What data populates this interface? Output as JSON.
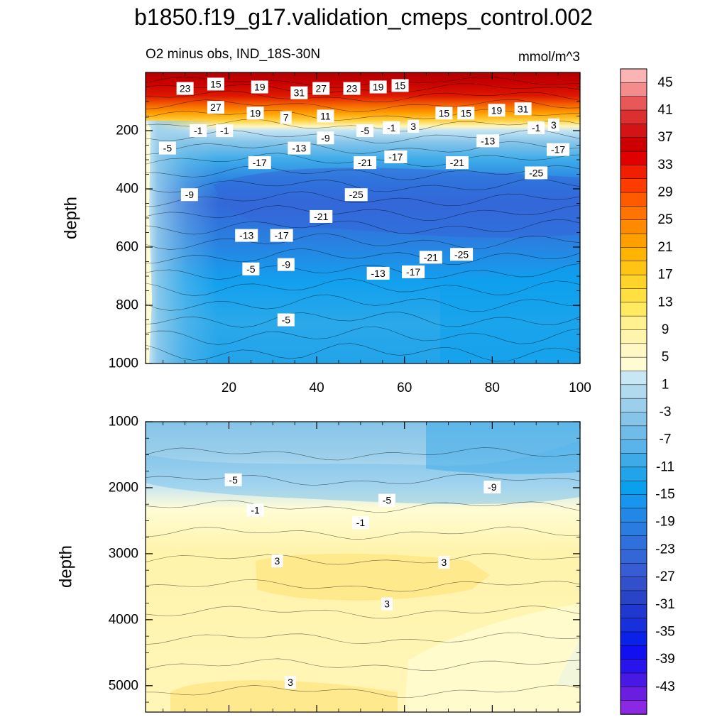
{
  "chart_data": {
    "type": "heatmap",
    "title": "b1850.f19_g17.validation_cmeps_control.002",
    "subtitle_left": "O2 minus obs, IND_18S-30N",
    "subtitle_right": "mmol/m^3",
    "x_ticks": [
      "20",
      "40",
      "60",
      "80",
      "100"
    ],
    "xlim": [
      1,
      100
    ],
    "colorbar": {
      "labels": [
        "45",
        "41",
        "37",
        "33",
        "29",
        "25",
        "21",
        "17",
        "13",
        "9",
        "5",
        "1",
        "-3",
        "-7",
        "-11",
        "-15",
        "-19",
        "-23",
        "-27",
        "-31",
        "-35",
        "-39",
        "-43"
      ],
      "colors": [
        "#fbb4b4",
        "#f48c8c",
        "#e85858",
        "#dc3030",
        "#d41414",
        "#cc0000",
        "#e00000",
        "#f21e00",
        "#ff3c00",
        "#ff5a00",
        "#ff7300",
        "#ff8a00",
        "#ffa000",
        "#ffb400",
        "#ffc414",
        "#ffd42a",
        "#ffe040",
        "#ffea60",
        "#fff090",
        "#fff4ac",
        "#fff8c4",
        "#fffcd4",
        "#c8e6f4",
        "#b2daee",
        "#9ccfeb",
        "#86c5e9",
        "#70bce9",
        "#5ab3e9",
        "#3eabe9",
        "#22a4ea",
        "#0aa0ee",
        "#1895ec",
        "#2288e6",
        "#2a7ce0",
        "#3070dc",
        "#3466d8",
        "#385cd4",
        "#3250cc",
        "#2a44c8",
        "#2038d0",
        "#1830dc",
        "#0a22e8",
        "#1010f0",
        "#2a14ec",
        "#4818e4",
        "#6a1ee0",
        "#8a28e4"
      ]
    },
    "panels": [
      {
        "ylabel": "depth",
        "y_ticks": [
          "200",
          "400",
          "600",
          "800",
          "1000"
        ],
        "ylim": [
          0,
          1000
        ],
        "contour_labels": [
          {
            "text": "23",
            "x": 10,
            "y": 55
          },
          {
            "text": "15",
            "x": 17,
            "y": 40
          },
          {
            "text": "19",
            "x": 27,
            "y": 50
          },
          {
            "text": "31",
            "x": 36,
            "y": 70
          },
          {
            "text": "27",
            "x": 41,
            "y": 55
          },
          {
            "text": "23",
            "x": 48,
            "y": 55
          },
          {
            "text": "19",
            "x": 54,
            "y": 50
          },
          {
            "text": "15",
            "x": 59,
            "y": 45
          },
          {
            "text": "27",
            "x": 17,
            "y": 120
          },
          {
            "text": "19",
            "x": 26,
            "y": 140
          },
          {
            "text": "7",
            "x": 33,
            "y": 155
          },
          {
            "text": "11",
            "x": 42,
            "y": 150
          },
          {
            "text": "15",
            "x": 69,
            "y": 140
          },
          {
            "text": "15",
            "x": 74,
            "y": 140
          },
          {
            "text": "19",
            "x": 81,
            "y": 130
          },
          {
            "text": "31",
            "x": 87,
            "y": 125
          },
          {
            "text": "-1",
            "x": 13,
            "y": 200
          },
          {
            "text": "-1",
            "x": 19,
            "y": 200
          },
          {
            "text": "-5",
            "x": 51,
            "y": 200
          },
          {
            "text": "-1",
            "x": 57,
            "y": 190
          },
          {
            "text": "3",
            "x": 62,
            "y": 185
          },
          {
            "text": "-1",
            "x": 90,
            "y": 190
          },
          {
            "text": "3",
            "x": 94,
            "y": 180
          },
          {
            "text": "-5",
            "x": 6,
            "y": 260
          },
          {
            "text": "-9",
            "x": 42,
            "y": 225
          },
          {
            "text": "-13",
            "x": 36,
            "y": 260
          },
          {
            "text": "-13",
            "x": 79,
            "y": 235
          },
          {
            "text": "-17",
            "x": 95,
            "y": 265
          },
          {
            "text": "-17",
            "x": 27,
            "y": 310
          },
          {
            "text": "-21",
            "x": 51,
            "y": 310
          },
          {
            "text": "-17",
            "x": 58,
            "y": 290
          },
          {
            "text": "-21",
            "x": 72,
            "y": 310
          },
          {
            "text": "-25",
            "x": 90,
            "y": 345
          },
          {
            "text": "-25",
            "x": 49,
            "y": 420
          },
          {
            "text": "-9",
            "x": 11,
            "y": 420
          },
          {
            "text": "-21",
            "x": 41,
            "y": 495
          },
          {
            "text": "-13",
            "x": 24,
            "y": 560
          },
          {
            "text": "-17",
            "x": 32,
            "y": 560
          },
          {
            "text": "-21",
            "x": 66,
            "y": 635
          },
          {
            "text": "-25",
            "x": 73,
            "y": 625
          },
          {
            "text": "-5",
            "x": 25,
            "y": 675
          },
          {
            "text": "-9",
            "x": 33,
            "y": 660
          },
          {
            "text": "-13",
            "x": 54,
            "y": 690
          },
          {
            "text": "-17",
            "x": 62,
            "y": 685
          },
          {
            "text": "-5",
            "x": 33,
            "y": 850
          }
        ]
      },
      {
        "ylabel": "depth",
        "y_ticks": [
          "1000",
          "2000",
          "3000",
          "4000",
          "5000"
        ],
        "ylim": [
          1000,
          5400
        ],
        "contour_labels": [
          {
            "text": "-5",
            "x": 21,
            "y": 1880
          },
          {
            "text": "-9",
            "x": 80,
            "y": 1990
          },
          {
            "text": "-5",
            "x": 56,
            "y": 2190
          },
          {
            "text": "-1",
            "x": 26,
            "y": 2340
          },
          {
            "text": "-1",
            "x": 50,
            "y": 2530
          },
          {
            "text": "3",
            "x": 31,
            "y": 3110
          },
          {
            "text": "3",
            "x": 69,
            "y": 3130
          },
          {
            "text": "3",
            "x": 56,
            "y": 3760
          },
          {
            "text": "3",
            "x": 34,
            "y": 4950
          }
        ]
      }
    ]
  }
}
